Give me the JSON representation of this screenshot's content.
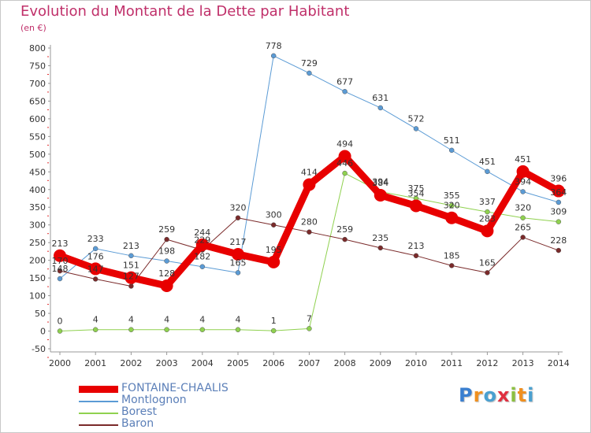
{
  "title": "Evolution du Montant de la Dette par Habitant",
  "unit": "(en €)",
  "logo": {
    "text": "Proxiti",
    "letters": [
      "P",
      "r",
      "o",
      "x",
      "i",
      "t",
      "i"
    ],
    "colors": [
      "#3a7fd0",
      "#f09020",
      "#4aa0d0",
      "#e03040",
      "#8cc040",
      "#f09020",
      "#4aa0d0"
    ]
  },
  "chart_data": {
    "type": "line",
    "ylim": [
      -50,
      800
    ],
    "yticks": [
      -50,
      0,
      50,
      100,
      150,
      200,
      250,
      300,
      350,
      400,
      450,
      500,
      550,
      600,
      650,
      700,
      750,
      800
    ],
    "x": [
      "2000",
      "2001",
      "2002",
      "2003",
      "2004",
      "2005",
      "2006",
      "2007",
      "2008",
      "2009",
      "2010",
      "2011",
      "2012",
      "2013",
      "2014"
    ],
    "grid": false,
    "legend": "bottom-left",
    "series": [
      {
        "name": "FONTAINE-CHAALIS",
        "color": "#e80000",
        "width": 9,
        "marker": 8,
        "values": [
          213,
          176,
          151,
          128,
          244,
          217,
          195,
          414,
          494,
          384,
          354,
          320,
          283,
          451,
          396
        ],
        "labels": [
          "213",
          "176",
          "151",
          "128",
          "244",
          "217",
          "195",
          "414",
          "494",
          "384",
          "354",
          "320",
          "283",
          "451",
          "396"
        ]
      },
      {
        "name": "Montlognon",
        "color": "#5b9bd5",
        "width": 1,
        "marker": 3,
        "values": [
          148,
          233,
          213,
          198,
          182,
          165,
          778,
          729,
          677,
          631,
          572,
          511,
          451,
          394,
          364
        ],
        "labels": [
          "148",
          "233",
          "213",
          "198",
          "182",
          "165",
          "778",
          "729",
          "677",
          "631",
          "572",
          "511",
          "451",
          "394",
          "364"
        ]
      },
      {
        "name": "Borest",
        "color": "#8fd14f",
        "width": 1,
        "marker": 3,
        "values": [
          0,
          4,
          4,
          4,
          4,
          4,
          1,
          7,
          446,
          394,
          375,
          355,
          337,
          320,
          309
        ],
        "labels": [
          "0",
          "4",
          "4",
          "4",
          "4",
          "4",
          "1",
          "7",
          "446",
          "394",
          "375",
          "355",
          "337",
          "320",
          "309"
        ]
      },
      {
        "name": "Baron",
        "color": "#7a2a2a",
        "width": 1,
        "marker": 3,
        "values": [
          170,
          147,
          127,
          259,
          229,
          320,
          300,
          280,
          259,
          235,
          213,
          185,
          165,
          265,
          228
        ],
        "labels": [
          "170",
          "147",
          "127",
          "259",
          "229",
          "320",
          "300",
          "280",
          "259",
          "235",
          "213",
          "185",
          "165",
          "265",
          "228"
        ]
      }
    ]
  }
}
